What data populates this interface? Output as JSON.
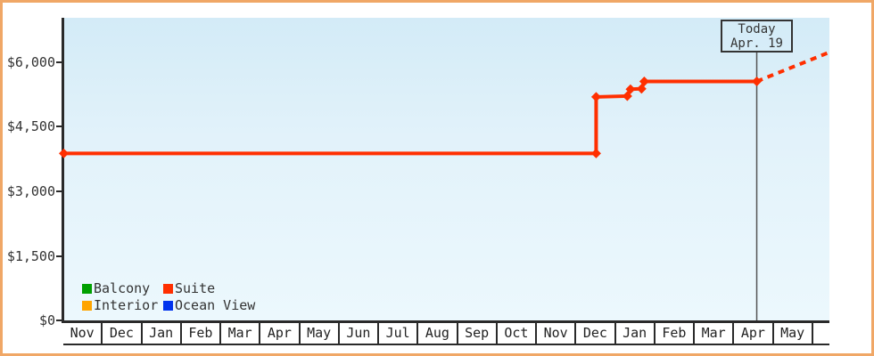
{
  "colors": {
    "frame_border": "#f0a766",
    "axis": "#2a2a2a",
    "text": "#333333",
    "plot_gradient_top": "#d3ebf7",
    "plot_gradient_bottom": "#ecf8fd",
    "today_line": "#555555",
    "balcony": "#00a000",
    "suite": "#ff2f00",
    "interior": "#ffa500",
    "ocean_view": "#0033ee"
  },
  "chart_data": {
    "type": "line",
    "title": "",
    "x_axis": {
      "unit": "month",
      "tick_labels": [
        "Nov",
        "Dec",
        "Jan",
        "Feb",
        "Mar",
        "Apr",
        "May",
        "Jun",
        "Jul",
        "Aug",
        "Sep",
        "Oct",
        "Nov",
        "Dec",
        "Jan",
        "Feb",
        "Mar",
        "Apr",
        "May"
      ]
    },
    "y_axis": {
      "range": [
        0,
        7030
      ],
      "ticks": [
        {
          "label": "$0",
          "value": 0
        },
        {
          "label": "$1,500",
          "value": 1500
        },
        {
          "label": "$3,000",
          "value": 3000
        },
        {
          "label": "$4,500",
          "value": 4500
        },
        {
          "label": "$6,000",
          "value": 6000
        }
      ]
    },
    "legend": [
      {
        "label": "Balcony",
        "color": "#00a000"
      },
      {
        "label": "Suite",
        "color": "#ff2f00"
      },
      {
        "label": "Interior",
        "color": "#ffa500"
      },
      {
        "label": "Ocean View",
        "color": "#0033ee"
      }
    ],
    "series": [
      {
        "name": "Suite",
        "color": "#ff2f00",
        "points": [
          {
            "month_offset": 0.0,
            "price": 3880
          },
          {
            "month_offset": 13.49,
            "price": 3880
          },
          {
            "month_offset": 13.49,
            "price": 5190
          },
          {
            "month_offset": 14.28,
            "price": 5210
          },
          {
            "month_offset": 14.36,
            "price": 5370
          },
          {
            "month_offset": 14.64,
            "price": 5380
          },
          {
            "month_offset": 14.71,
            "price": 5550
          },
          {
            "month_offset": 17.56,
            "price": 5550
          }
        ]
      }
    ],
    "projection": {
      "series": "Suite",
      "style": "dashed",
      "from": {
        "month_offset": 17.56,
        "price": 5550
      },
      "to": {
        "month_offset": 19.41,
        "price": 6230
      }
    },
    "today_marker": {
      "line1": "Today",
      "line2": "Apr. 19",
      "month_offset": 17.56
    }
  }
}
